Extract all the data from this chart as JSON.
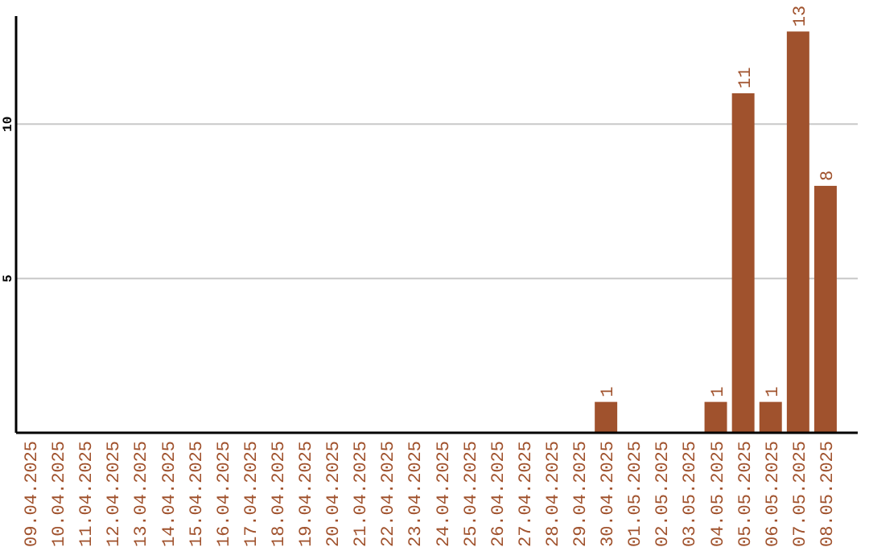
{
  "chart_data": {
    "type": "bar",
    "categories": [
      "09.04.2025",
      "10.04.2025",
      "11.04.2025",
      "12.04.2025",
      "13.04.2025",
      "14.04.2025",
      "15.04.2025",
      "16.04.2025",
      "17.04.2025",
      "18.04.2025",
      "19.04.2025",
      "20.04.2025",
      "21.04.2025",
      "22.04.2025",
      "23.04.2025",
      "24.04.2025",
      "25.04.2025",
      "26.04.2025",
      "27.04.2025",
      "28.04.2025",
      "29.04.2025",
      "30.04.2025",
      "01.05.2025",
      "02.05.2025",
      "03.05.2025",
      "04.05.2025",
      "05.05.2025",
      "06.05.2025",
      "07.05.2025",
      "08.05.2025"
    ],
    "values": [
      null,
      null,
      null,
      null,
      null,
      null,
      null,
      null,
      null,
      null,
      null,
      null,
      null,
      null,
      null,
      null,
      null,
      null,
      null,
      null,
      null,
      1,
      null,
      null,
      null,
      1,
      11,
      1,
      13,
      8
    ],
    "color": "#a0522d",
    "ylim": [
      0,
      13.5
    ],
    "yticks": [
      5,
      10
    ],
    "grid": "y",
    "data_labels": true
  }
}
